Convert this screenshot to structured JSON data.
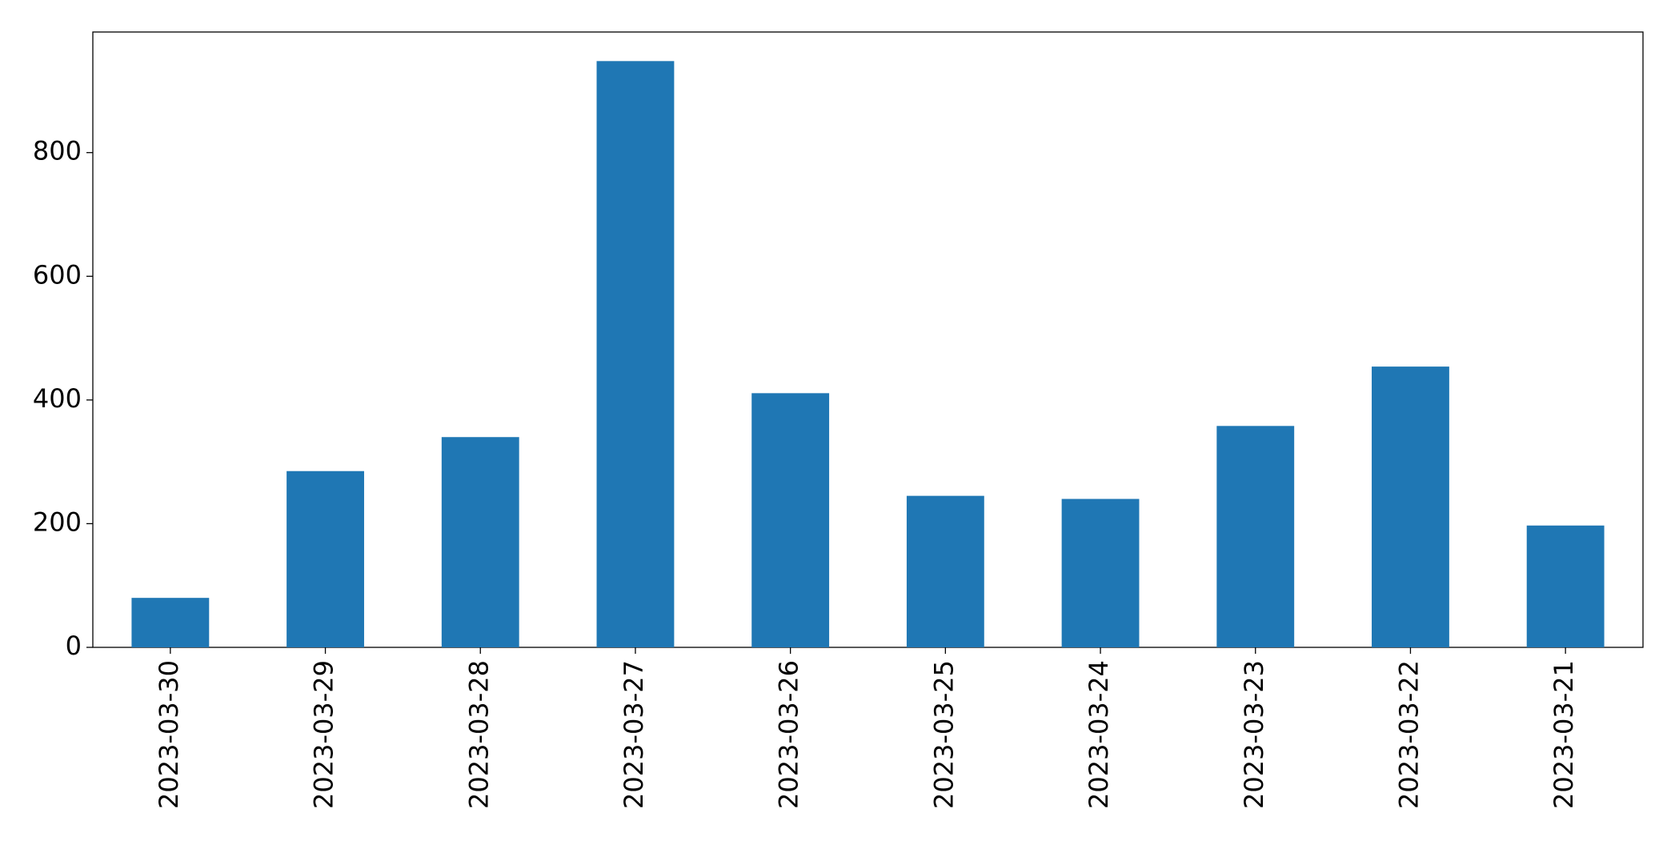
{
  "chart_data": {
    "type": "bar",
    "categories": [
      "2023-03-30",
      "2023-03-29",
      "2023-03-28",
      "2023-03-27",
      "2023-03-26",
      "2023-03-25",
      "2023-03-24",
      "2023-03-23",
      "2023-03-22",
      "2023-03-21"
    ],
    "values": [
      80,
      285,
      340,
      948,
      411,
      245,
      240,
      358,
      454,
      197
    ],
    "color": "#1f77b4",
    "ylim": [
      0,
      995
    ],
    "yticks": [
      0,
      200,
      400,
      600,
      800
    ],
    "grid": false
  }
}
